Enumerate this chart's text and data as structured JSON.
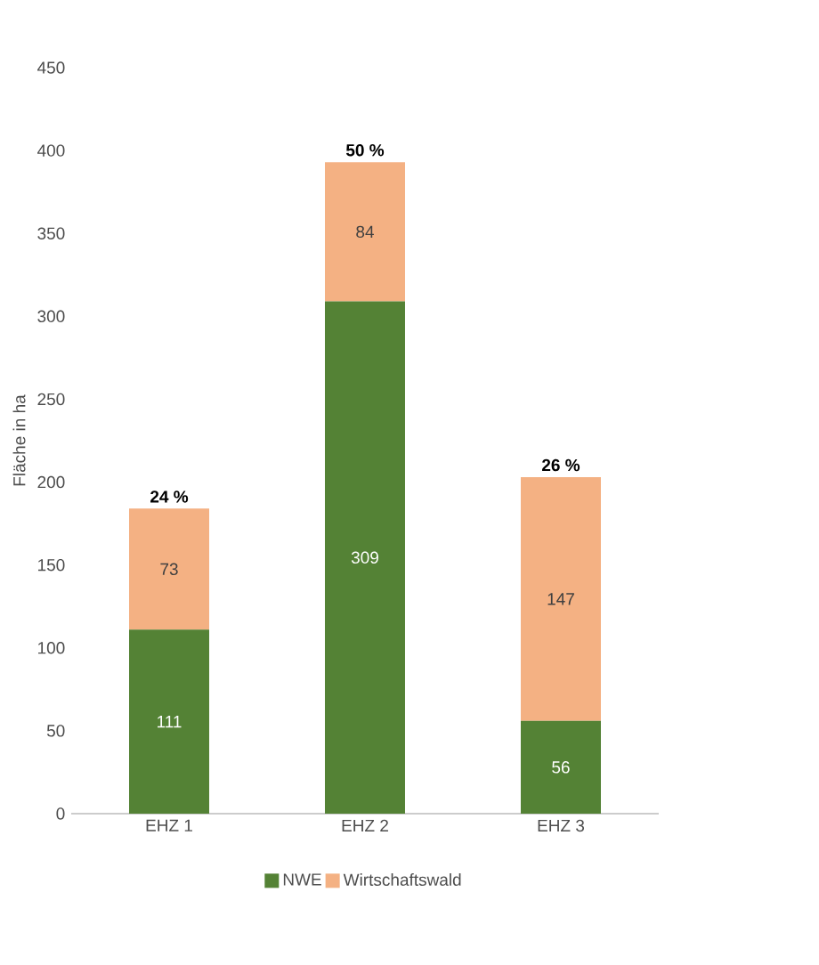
{
  "chart_data": {
    "type": "bar",
    "stacked": true,
    "ylabel": "Fläche in ha",
    "categories": [
      "EHZ 1",
      "EHZ 2",
      "EHZ 3"
    ],
    "series": [
      {
        "name": "NWE",
        "color": "#548235",
        "values": [
          111,
          309,
          56
        ]
      },
      {
        "name": "Wirtschaftswald",
        "color": "#f4b183",
        "values": [
          73,
          84,
          147
        ]
      }
    ],
    "annotations": [
      {
        "text": "24 %",
        "x": "EHZ 1",
        "y": 184
      },
      {
        "text": "50 %",
        "x": "EHZ 2",
        "y": 393
      },
      {
        "text": "26 %",
        "x": "EHZ 3",
        "y": 203
      }
    ],
    "data_labels": true,
    "ylim": [
      0,
      450
    ],
    "yticks": [
      0,
      50,
      100,
      150,
      200,
      250,
      300,
      350,
      400,
      450
    ],
    "grid": false,
    "legend": "bottom"
  }
}
